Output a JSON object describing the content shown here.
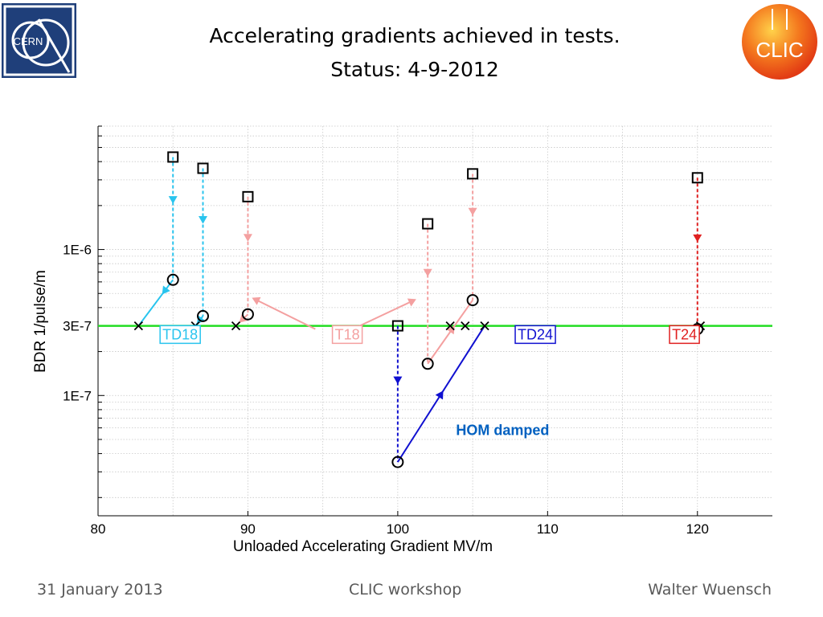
{
  "header": {
    "title_line1": "Accelerating gradients achieved in tests.",
    "title_line2": "Status: 4-9-2012",
    "cern_logo_text": "CERN",
    "clic_logo_text": "CLIC"
  },
  "footer": {
    "date": "31 January 2013",
    "event": "CLIC workshop",
    "author": "Walter Wuensch"
  },
  "colors": {
    "TD18": "#29c4ee",
    "T18": "#f4a0a0",
    "TD24": "#1010d0",
    "T24": "#e02020",
    "reference_line": "#22dd22",
    "hom_note": "#0060c0"
  },
  "chart_data": {
    "type": "scatter",
    "xlabel": "Unloaded Accelerating Gradient MV/m",
    "ylabel": "BDR 1/pulse/m",
    "x_scale": "linear",
    "y_scale": "log",
    "xlim": [
      80,
      125
    ],
    "ylim": [
      1.5e-08,
      7e-06
    ],
    "x_ticks": [
      80,
      90,
      100,
      110,
      120
    ],
    "y_ticks": [
      {
        "value": 1e-07,
        "label": "1E-7"
      },
      {
        "value": 3e-07,
        "label": "3E-7"
      },
      {
        "value": 1e-06,
        "label": "1E-6"
      }
    ],
    "grid": true,
    "reference_line": {
      "y": 3e-07
    },
    "series": [
      {
        "name": "TD18",
        "color_key": "TD18",
        "label_at": {
          "x": 84.3,
          "y": 2.65e-07
        },
        "paths": [
          {
            "style": "dashed",
            "points": [
              [
                85,
                4.3e-06
              ],
              [
                85,
                6.2e-07
              ]
            ],
            "arrow_at": 0.35
          },
          {
            "style": "dashed",
            "points": [
              [
                87,
                3.6e-06
              ],
              [
                87,
                3.5e-07
              ]
            ],
            "arrow_at": 0.35
          },
          {
            "style": "solid",
            "points": [
              [
                85,
                6.2e-07
              ],
              [
                82.7,
                3e-07
              ]
            ],
            "arrow_at": 0.25
          },
          {
            "style": "solid",
            "points": [
              [
                87,
                3.5e-07
              ],
              [
                86.5,
                3e-07
              ]
            ],
            "arrow_at": 0.5
          }
        ],
        "squares": [
          [
            85,
            4.3e-06
          ],
          [
            87,
            3.6e-06
          ]
        ],
        "circles": [
          [
            85,
            6.2e-07
          ],
          [
            87,
            3.5e-07
          ]
        ],
        "crosses": [
          [
            82.7,
            3e-07
          ],
          [
            86.5,
            3e-07
          ]
        ]
      },
      {
        "name": "T18",
        "color_key": "T18",
        "label_at": {
          "x": 95.8,
          "y": 2.65e-07
        },
        "paths": [
          {
            "style": "dashed",
            "points": [
              [
                90,
                2.3e-06
              ],
              [
                90,
                3.6e-07
              ]
            ],
            "arrow_at": 0.35
          },
          {
            "style": "dashed",
            "points": [
              [
                102,
                1.5e-06
              ],
              [
                102,
                1.65e-07
              ]
            ],
            "arrow_at": 0.35
          },
          {
            "style": "dashed",
            "points": [
              [
                105,
                3.3e-06
              ],
              [
                105,
                4.5e-07
              ]
            ],
            "arrow_at": 0.3
          },
          {
            "style": "solid",
            "points": [
              [
                90,
                3.6e-07
              ],
              [
                89.2,
                3e-07
              ]
            ],
            "arrow_at": 0.5
          },
          {
            "style": "solid",
            "points": [
              [
                102,
                1.65e-07
              ],
              [
                105,
                4.5e-07
              ]
            ],
            "arrow_at": 0.55
          },
          {
            "style": "solid",
            "points": [
              [
                94.5,
                2.85e-07
              ],
              [
                90.5,
                4.55e-07
              ]
            ],
            "arrow_at": 1.0
          },
          {
            "style": "solid",
            "points": [
              [
                97,
                2.85e-07
              ],
              [
                101,
                4.45e-07
              ]
            ],
            "arrow_at": 1.0
          }
        ],
        "squares": [
          [
            90,
            2.3e-06
          ],
          [
            102,
            1.5e-06
          ],
          [
            105,
            3.3e-06
          ]
        ],
        "circles": [
          [
            90,
            3.6e-07
          ],
          [
            102,
            1.65e-07
          ],
          [
            105,
            4.5e-07
          ]
        ],
        "crosses": [
          [
            89.2,
            3e-07
          ],
          [
            103.5,
            3e-07
          ],
          [
            104.5,
            3e-07
          ]
        ]
      },
      {
        "name": "TD24",
        "color_key": "TD24",
        "label_at": {
          "x": 108,
          "y": 2.65e-07
        },
        "paths": [
          {
            "style": "dashed",
            "points": [
              [
                100,
                3e-07
              ],
              [
                100,
                3.5e-08
              ]
            ],
            "arrow_at": 0.4
          },
          {
            "style": "solid",
            "points": [
              [
                100,
                3.5e-08
              ],
              [
                105.8,
                3e-07
              ]
            ],
            "arrow_at": 0.5
          }
        ],
        "squares": [
          [
            100,
            3e-07
          ]
        ],
        "circles": [
          [
            100,
            3.5e-08
          ]
        ],
        "crosses": [
          [
            105.8,
            3e-07
          ]
        ]
      },
      {
        "name": "T24",
        "color_key": "T24",
        "label_at": {
          "x": 118.3,
          "y": 2.65e-07
        },
        "paths": [
          {
            "style": "dashed",
            "points": [
              [
                120,
                3.1e-06
              ],
              [
                120,
                2.85e-07
              ]
            ],
            "arrow_at": 0.4
          }
        ],
        "squares": [
          [
            120,
            3.1e-06
          ]
        ],
        "circles": [
          [
            120,
            2.85e-07
          ]
        ],
        "crosses": [
          [
            120.2,
            3e-07
          ]
        ]
      }
    ],
    "annotations": [
      {
        "text": "HOM damped",
        "x": 107,
        "y": 5.8e-08,
        "color_key": "hom_note"
      }
    ]
  }
}
